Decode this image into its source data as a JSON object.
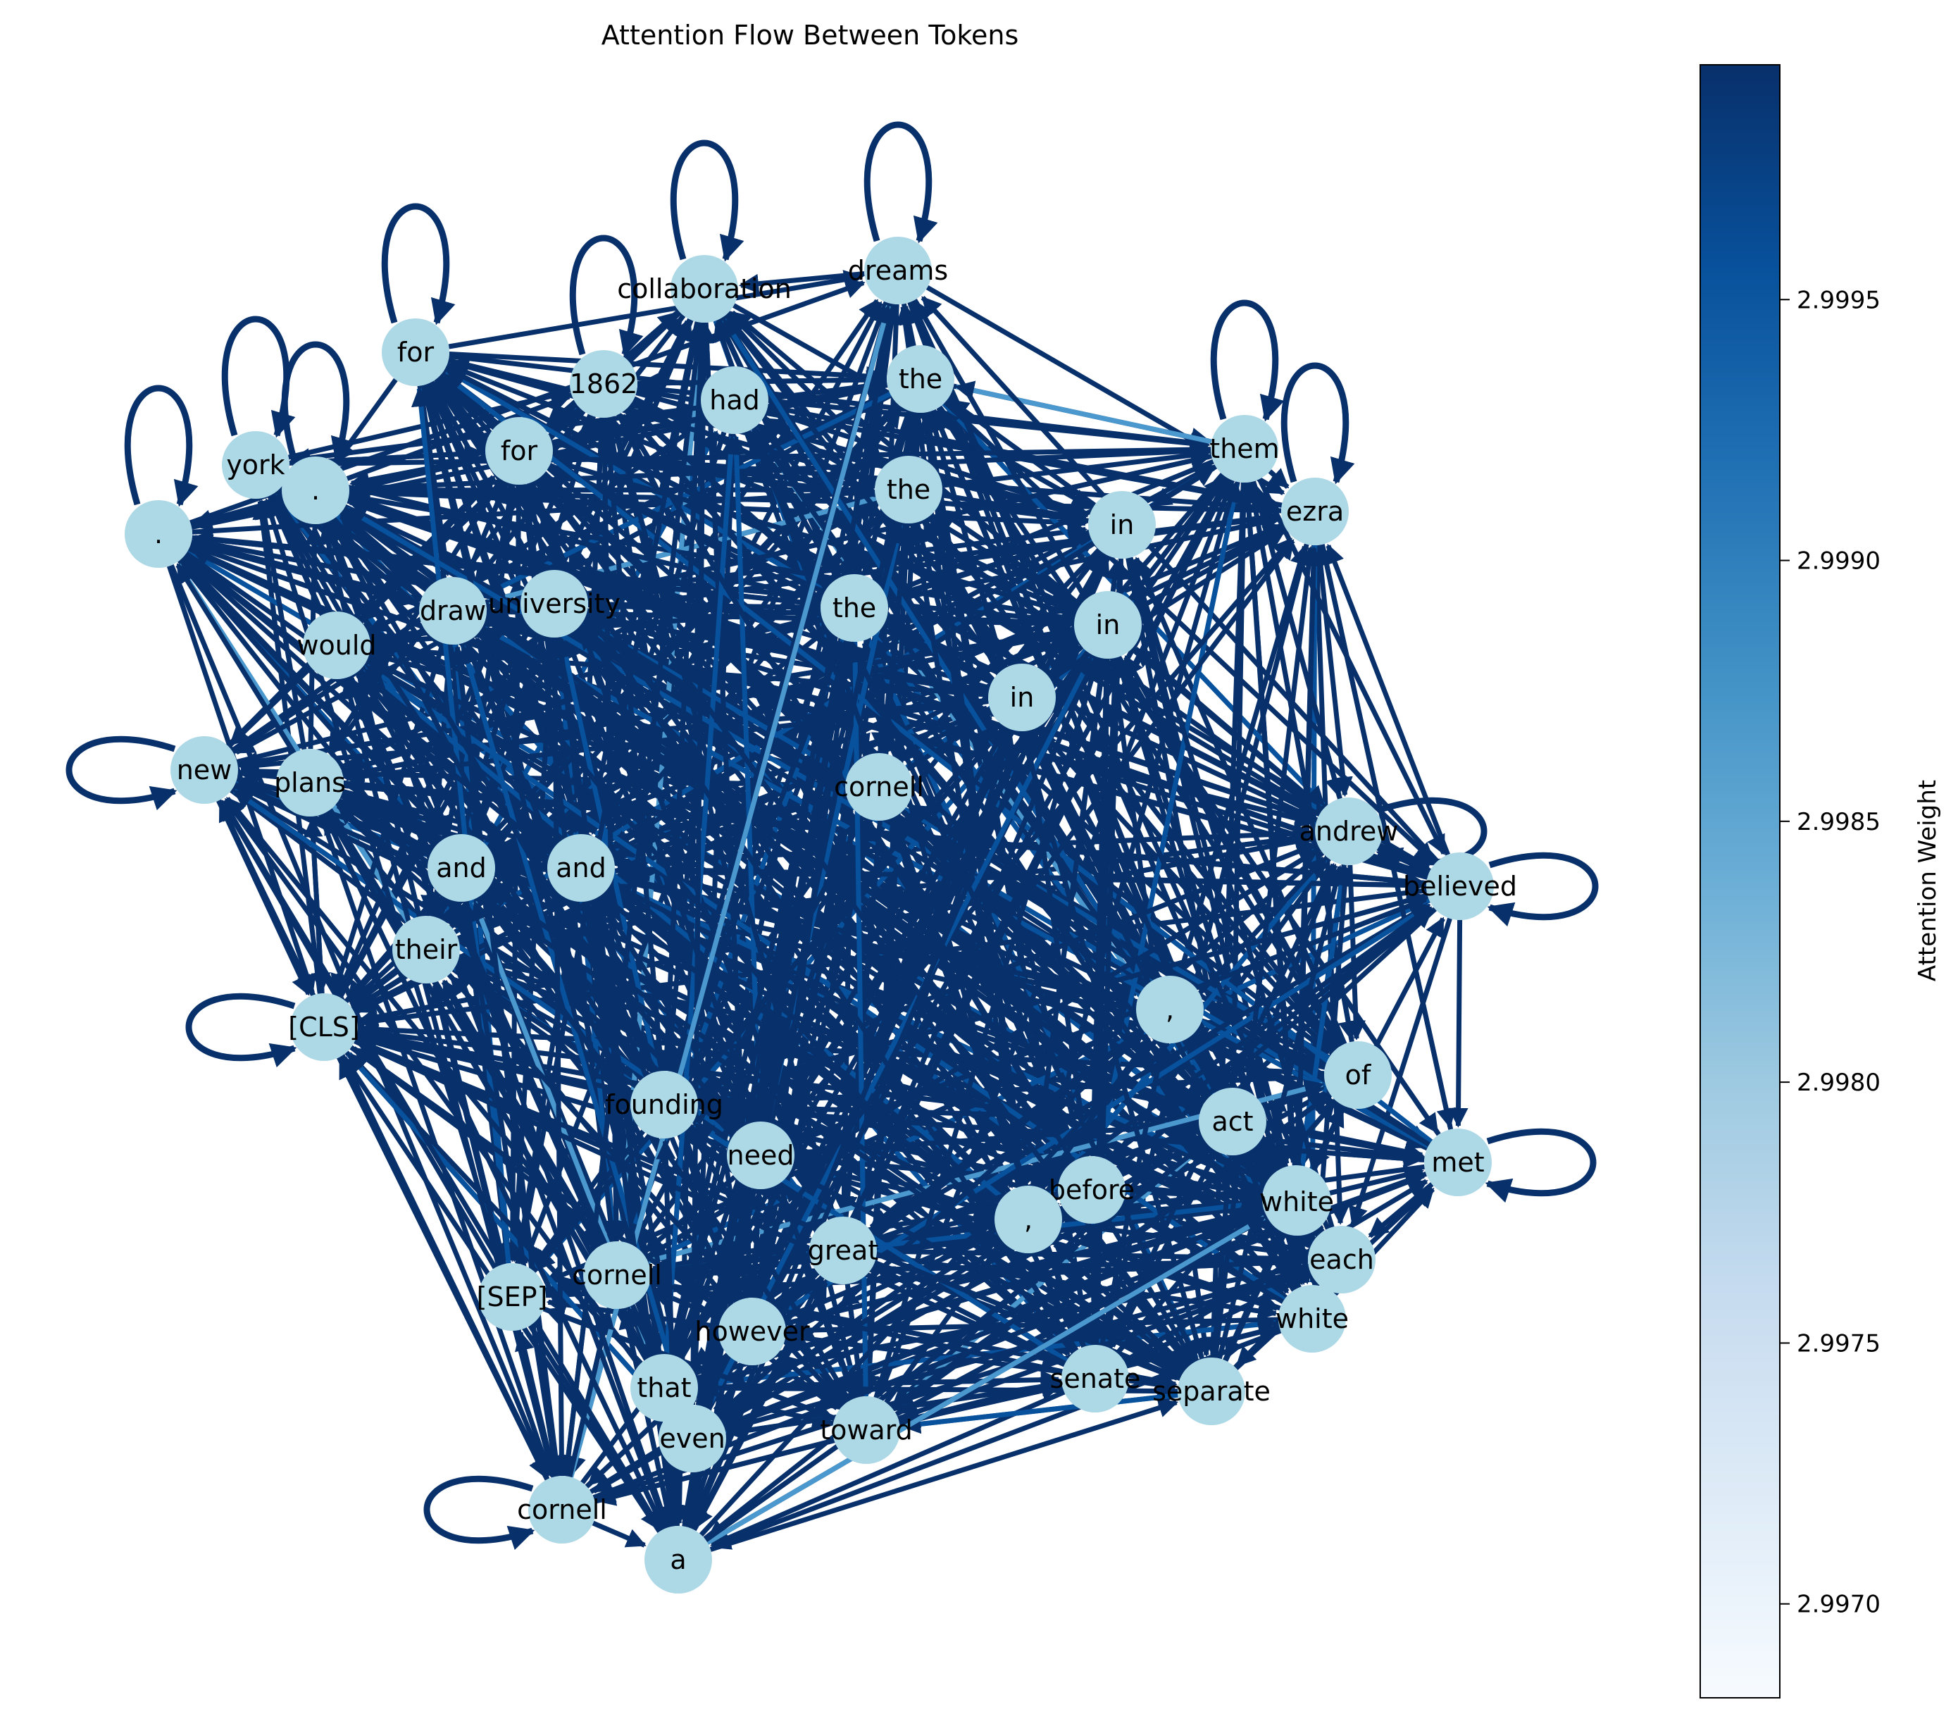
{
  "title": "Attention Flow Between Tokens",
  "colorbar": {
    "label": "Attention Weight",
    "ticks": [
      {
        "value": 2.997,
        "text": "2.9970"
      },
      {
        "value": 2.9975,
        "text": "2.9975"
      },
      {
        "value": 2.998,
        "text": "2.9980"
      },
      {
        "value": 2.9985,
        "text": "2.9985"
      },
      {
        "value": 2.999,
        "text": "2.9990"
      },
      {
        "value": 2.9995,
        "text": "2.9995"
      }
    ],
    "range": [
      2.99682,
      2.99995
    ],
    "colors": [
      "#f7fbff",
      "#deebf7",
      "#c6dbef",
      "#9ecae1",
      "#6baed6",
      "#4292c6",
      "#2171b5",
      "#08519c",
      "#08306b"
    ]
  },
  "colors": {
    "node_fill": "#add8e6",
    "edge_dark": "#08306b",
    "edge_mid": "#08519c",
    "edge_light": "#4a98cd"
  },
  "nodes": [
    {
      "id": "cls",
      "label": "[CLS]"
    },
    {
      "id": "cornell1",
      "label": "cornell"
    },
    {
      "id": "andrew",
      "label": "andrew"
    },
    {
      "id": "white1",
      "label": "white"
    },
    {
      "id": "ezra",
      "label": "ezra"
    },
    {
      "id": "for1",
      "label": "for"
    },
    {
      "id": "york",
      "label": "york"
    },
    {
      "id": "dot1",
      "label": "."
    },
    {
      "id": "dot2",
      "label": "."
    },
    {
      "id": "new",
      "label": "new"
    },
    {
      "id": "plans",
      "label": "plans"
    },
    {
      "id": "and1",
      "label": "and"
    },
    {
      "id": "and2",
      "label": "and"
    },
    {
      "id": "their",
      "label": "their"
    },
    {
      "id": "would",
      "label": "would"
    },
    {
      "id": "draw",
      "label": "draw"
    },
    {
      "id": "university",
      "label": "university"
    },
    {
      "id": "year1862",
      "label": "1862"
    },
    {
      "id": "for2",
      "label": "for"
    },
    {
      "id": "collaboration",
      "label": "collaboration"
    },
    {
      "id": "had",
      "label": "had"
    },
    {
      "id": "dreams",
      "label": "dreams"
    },
    {
      "id": "the1",
      "label": "the"
    },
    {
      "id": "the2",
      "label": "the"
    },
    {
      "id": "the3",
      "label": "the"
    },
    {
      "id": "them",
      "label": "them"
    },
    {
      "id": "in1",
      "label": "in"
    },
    {
      "id": "in2",
      "label": "in"
    },
    {
      "id": "in3",
      "label": "in"
    },
    {
      "id": "believed",
      "label": "believed"
    },
    {
      "id": "comma1",
      "label": ","
    },
    {
      "id": "of",
      "label": "of"
    },
    {
      "id": "act",
      "label": "act"
    },
    {
      "id": "met",
      "label": "met"
    },
    {
      "id": "white2",
      "label": "white"
    },
    {
      "id": "before",
      "label": "before"
    },
    {
      "id": "comma2",
      "label": ","
    },
    {
      "id": "each",
      "label": "each"
    },
    {
      "id": "white3",
      "label": "white"
    },
    {
      "id": "founding",
      "label": "founding"
    },
    {
      "id": "need",
      "label": "need"
    },
    {
      "id": "great",
      "label": "great"
    },
    {
      "id": "sep",
      "label": "[SEP]"
    },
    {
      "id": "cornell2",
      "label": "cornell"
    },
    {
      "id": "however",
      "label": "however"
    },
    {
      "id": "that",
      "label": "that"
    },
    {
      "id": "even",
      "label": "even"
    },
    {
      "id": "toward",
      "label": "toward"
    },
    {
      "id": "senate",
      "label": "senate"
    },
    {
      "id": "separate",
      "label": "separate"
    },
    {
      "id": "cornell3",
      "label": "cornell"
    },
    {
      "id": "a",
      "label": "a"
    }
  ],
  "self_loops": [
    "dot1",
    "york",
    "dot2",
    "for1",
    "year1862",
    "collaboration",
    "dreams",
    "them",
    "ezra",
    "new",
    "cls",
    "believed",
    "met",
    "andrew",
    "cornell3"
  ]
}
